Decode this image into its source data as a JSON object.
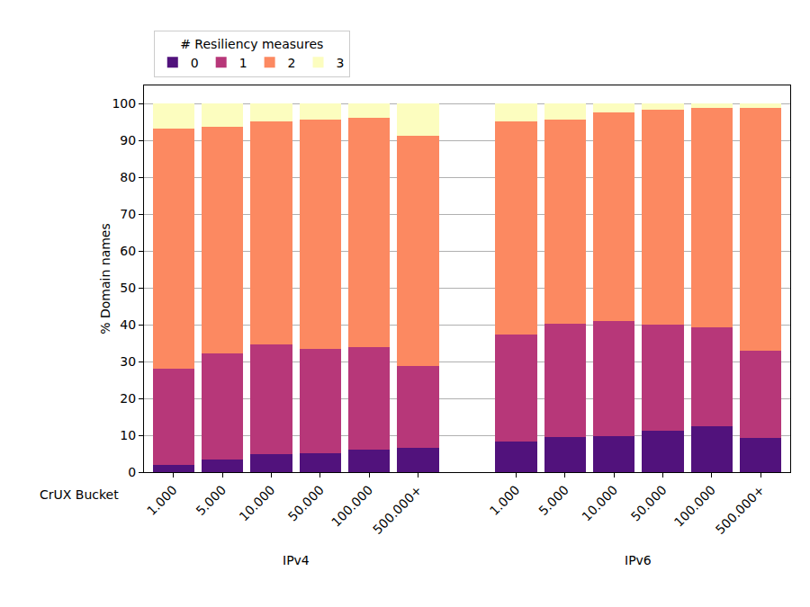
{
  "chart_data": {
    "type": "bar",
    "stacked": true,
    "x_label": "CrUX Bucket",
    "y_label": "% Domain names",
    "legend_title": "# Resiliency measures",
    "legend": "top",
    "grid": true,
    "ylim": [
      0,
      105
    ],
    "yticks": [
      0,
      10,
      20,
      30,
      40,
      50,
      60,
      70,
      80,
      90,
      100
    ],
    "groups": [
      {
        "name": "IPv4",
        "categories": [
          "1.000",
          "5.000",
          "10.000",
          "50.000",
          "100.000",
          "500.000+"
        ]
      },
      {
        "name": "IPv6",
        "categories": [
          "1.000",
          "5.000",
          "10.000",
          "50.000",
          "100.000",
          "500.000+"
        ]
      }
    ],
    "series": [
      {
        "name": "0",
        "color": "#51127c",
        "values": [
          2.0,
          3.3,
          5.0,
          5.2,
          6.2,
          6.5,
          8.3,
          9.5,
          9.8,
          11.2,
          12.4,
          9.3
        ]
      },
      {
        "name": "1",
        "color": "#b73779",
        "values": [
          26.0,
          29.0,
          29.6,
          28.2,
          27.8,
          22.3,
          29.0,
          30.9,
          31.3,
          28.8,
          27.0,
          23.6
        ]
      },
      {
        "name": "2",
        "color": "#fc8961",
        "values": [
          65.2,
          61.4,
          60.7,
          62.4,
          62.1,
          62.6,
          58.0,
          55.4,
          56.6,
          58.4,
          59.6,
          66.1
        ]
      },
      {
        "name": "3",
        "color": "#fcfdbf",
        "values": [
          6.8,
          6.3,
          4.7,
          4.2,
          3.9,
          8.6,
          4.7,
          4.2,
          2.3,
          1.6,
          1.0,
          1.0
        ]
      }
    ]
  }
}
